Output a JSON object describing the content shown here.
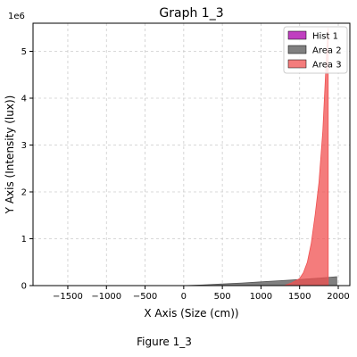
{
  "chart_data": {
    "type": "area",
    "title": "Graph 1_3",
    "xlabel": "X Axis (Size (cm))",
    "ylabel": "Y Axis (Intensity (lux))",
    "y_offset_label": "1e6",
    "xlim": [
      -1950,
      2150
    ],
    "ylim": [
      0,
      5600000
    ],
    "xticks": [
      -1500,
      -1000,
      -500,
      0,
      500,
      1000,
      1500,
      2000
    ],
    "xtick_labels": [
      "−1500",
      "−1000",
      "−500",
      "0",
      "500",
      "1000",
      "1500",
      "2000"
    ],
    "yticks": [
      0,
      1000000,
      2000000,
      3000000,
      4000000,
      5000000
    ],
    "ytick_labels": [
      "0",
      "1",
      "2",
      "3",
      "4",
      "5"
    ],
    "grid": true,
    "legend_position": "top-right",
    "series": [
      {
        "name": "Hist 1",
        "kind": "hist",
        "color": "#c040c0",
        "points": []
      },
      {
        "name": "Area 2",
        "kind": "area",
        "color": "#555555",
        "opacity": 0.75,
        "x": [
          0,
          250,
          500,
          750,
          1000,
          1250,
          1500,
          1750,
          1980
        ],
        "y": [
          0,
          15000,
          35000,
          55000,
          80000,
          105000,
          130000,
          160000,
          190000
        ]
      },
      {
        "name": "Area 3",
        "kind": "area",
        "color": "#f05050",
        "opacity": 0.75,
        "x": [
          1300,
          1400,
          1500,
          1550,
          1600,
          1650,
          1700,
          1750,
          1800,
          1850,
          1870
        ],
        "y": [
          0,
          60000,
          150000,
          280000,
          500000,
          900000,
          1500000,
          2200000,
          3300000,
          5000000,
          5500000
        ]
      }
    ]
  },
  "figure_caption": "Figure 1_3"
}
